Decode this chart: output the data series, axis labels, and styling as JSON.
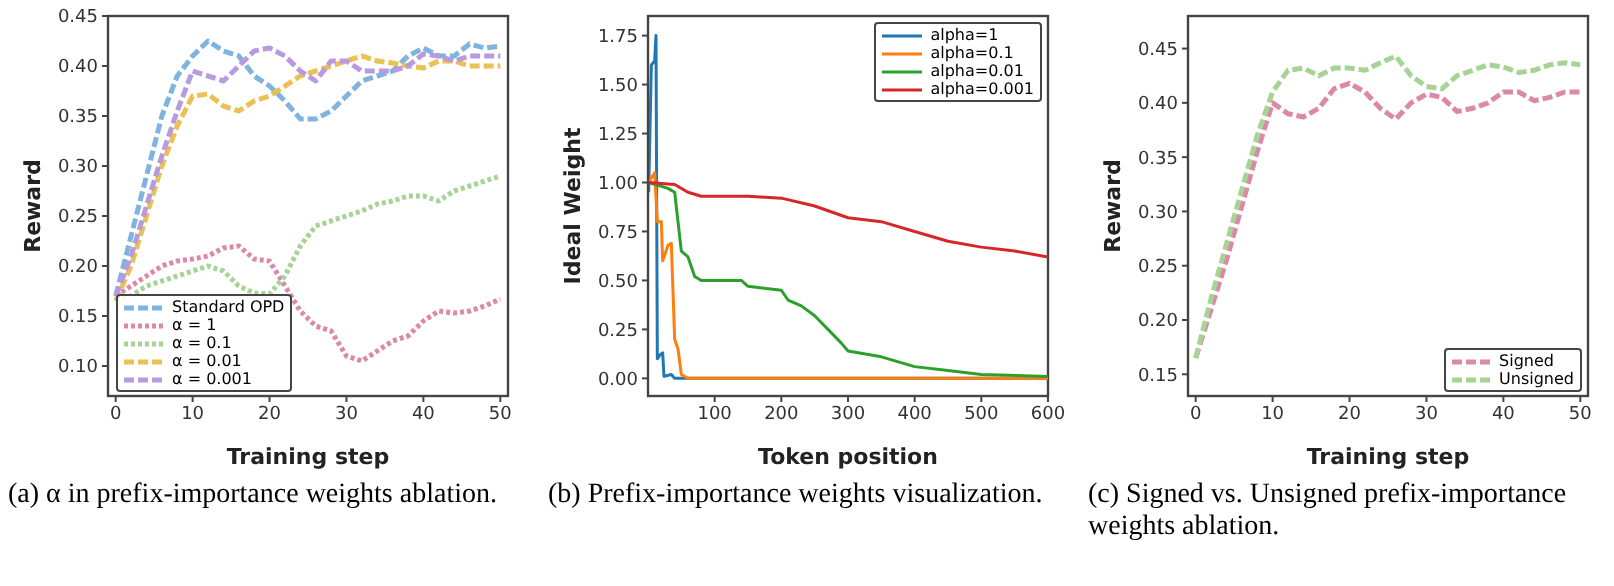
{
  "chart_data": [
    {
      "type": "line",
      "xlabel": "Training step",
      "ylabel": "Reward",
      "xlim": [
        -1,
        51
      ],
      "xticks": [
        0,
        10,
        20,
        30,
        40,
        50
      ],
      "ylim": [
        0.07,
        0.45
      ],
      "yticks": [
        {
          "value": 0.1,
          "label": "0.10"
        },
        {
          "value": 0.15,
          "label": "0.15"
        },
        {
          "value": 0.2,
          "label": "0.20"
        },
        {
          "value": 0.25,
          "label": "0.25"
        },
        {
          "value": 0.3,
          "label": "0.30"
        },
        {
          "value": 0.35,
          "label": "0.35"
        },
        {
          "value": 0.4,
          "label": "0.40"
        },
        {
          "value": 0.45,
          "label": "0.45"
        }
      ],
      "grid": false,
      "legend": "bottom left",
      "marker": "none",
      "annotations": [
        "(a) α in prefix-importance weights ablation."
      ],
      "x": [
        0,
        2,
        4,
        6,
        8,
        10,
        12,
        14,
        16,
        18,
        20,
        22,
        24,
        26,
        28,
        30,
        32,
        34,
        36,
        38,
        40,
        42,
        44,
        46,
        48,
        50
      ],
      "series": [
        {
          "name": "Standard OPD",
          "color": "#7fb3e0",
          "line_style": "dashed",
          "values": [
            0.17,
            0.23,
            0.29,
            0.35,
            0.39,
            0.41,
            0.425,
            0.415,
            0.41,
            0.39,
            0.38,
            0.365,
            0.347,
            0.347,
            0.355,
            0.37,
            0.385,
            0.39,
            0.395,
            0.41,
            0.418,
            0.41,
            0.41,
            0.422,
            0.418,
            0.42
          ]
        },
        {
          "name": "α = 1",
          "color": "#dc89a8",
          "line_style": "dotted",
          "values": [
            0.17,
            0.18,
            0.19,
            0.2,
            0.205,
            0.207,
            0.21,
            0.218,
            0.22,
            0.207,
            0.205,
            0.18,
            0.155,
            0.14,
            0.135,
            0.11,
            0.105,
            0.115,
            0.125,
            0.13,
            0.145,
            0.155,
            0.153,
            0.155,
            0.16,
            0.167
          ]
        },
        {
          "name": "α = 0.1",
          "color": "#a6d494",
          "line_style": "dotted",
          "values": [
            0.165,
            0.17,
            0.18,
            0.185,
            0.19,
            0.195,
            0.2,
            0.195,
            0.18,
            0.173,
            0.172,
            0.19,
            0.22,
            0.24,
            0.245,
            0.25,
            0.255,
            0.262,
            0.265,
            0.27,
            0.27,
            0.265,
            0.275,
            0.28,
            0.285,
            0.29
          ]
        },
        {
          "name": "α = 0.01",
          "color": "#ecc052",
          "line_style": "dashed",
          "values": [
            0.165,
            0.2,
            0.25,
            0.3,
            0.34,
            0.37,
            0.372,
            0.36,
            0.355,
            0.365,
            0.37,
            0.38,
            0.39,
            0.395,
            0.4,
            0.405,
            0.41,
            0.405,
            0.403,
            0.4,
            0.398,
            0.405,
            0.405,
            0.4,
            0.4,
            0.4
          ]
        },
        {
          "name": "α = 0.001",
          "color": "#b79ae0",
          "line_style": "dashed",
          "values": [
            0.17,
            0.21,
            0.26,
            0.31,
            0.355,
            0.395,
            0.39,
            0.385,
            0.4,
            0.415,
            0.418,
            0.41,
            0.395,
            0.385,
            0.405,
            0.405,
            0.395,
            0.395,
            0.395,
            0.4,
            0.412,
            0.41,
            0.405,
            0.41,
            0.41,
            0.41
          ]
        }
      ]
    },
    {
      "type": "line",
      "xlabel": "Token position",
      "ylabel": "Ideal Weight",
      "xlim": [
        0,
        600
      ],
      "xticks": [
        100,
        200,
        300,
        400,
        500,
        600
      ],
      "ylim": [
        -0.09,
        1.85
      ],
      "yticks": [
        {
          "value": 0,
          "label": "0.00"
        },
        {
          "value": 0.25,
          "label": "0.25"
        },
        {
          "value": 0.5,
          "label": "0.50"
        },
        {
          "value": 0.75,
          "label": "0.75"
        },
        {
          "value": 1,
          "label": "1.00"
        },
        {
          "value": 1.25,
          "label": "1.25"
        },
        {
          "value": 1.5,
          "label": "1.50"
        },
        {
          "value": 1.75,
          "label": "1.75"
        }
      ],
      "grid": false,
      "legend": "top right",
      "marker": "none",
      "annotations": [
        "(b) Prefix-importance weights visualization."
      ],
      "series": [
        {
          "name": "alpha=1",
          "color": "#1f77b4",
          "line_style": "solid",
          "x": [
            1,
            5,
            10,
            12,
            14,
            18,
            22,
            24,
            35,
            40,
            600
          ],
          "values": [
            0.95,
            1.6,
            1.62,
            1.75,
            0.1,
            0.12,
            0.13,
            0.01,
            0.02,
            0,
            0
          ]
        },
        {
          "name": "alpha=0.1",
          "color": "#ff7f0e",
          "line_style": "solid",
          "x": [
            1,
            10,
            14,
            20,
            22,
            30,
            35,
            40,
            45,
            50,
            60,
            600
          ],
          "values": [
            1.0,
            1.05,
            0.8,
            0.8,
            0.6,
            0.68,
            0.69,
            0.2,
            0.15,
            0.02,
            0,
            0
          ]
        },
        {
          "name": "alpha=0.01",
          "color": "#2ca02c",
          "line_style": "solid",
          "x": [
            1,
            30,
            40,
            45,
            50,
            60,
            70,
            80,
            140,
            150,
            200,
            210,
            230,
            250,
            270,
            290,
            300,
            350,
            400,
            450,
            500,
            600
          ],
          "values": [
            1.0,
            0.97,
            0.95,
            0.8,
            0.65,
            0.62,
            0.52,
            0.5,
            0.5,
            0.47,
            0.45,
            0.4,
            0.37,
            0.32,
            0.25,
            0.18,
            0.14,
            0.11,
            0.06,
            0.04,
            0.02,
            0.01
          ]
        },
        {
          "name": "alpha=0.001",
          "color": "#d62728",
          "line_style": "solid",
          "x": [
            1,
            40,
            60,
            80,
            150,
            200,
            250,
            300,
            350,
            400,
            450,
            500,
            550,
            600
          ],
          "values": [
            1.0,
            0.99,
            0.95,
            0.93,
            0.93,
            0.92,
            0.88,
            0.82,
            0.8,
            0.75,
            0.7,
            0.67,
            0.65,
            0.62
          ]
        }
      ]
    },
    {
      "type": "line",
      "xlabel": "Training step",
      "ylabel": "Reward",
      "xlim": [
        -1,
        51
      ],
      "xticks": [
        0,
        10,
        20,
        30,
        40,
        50
      ],
      "ylim": [
        0.13,
        0.48
      ],
      "yticks": [
        {
          "value": 0.15,
          "label": "0.15"
        },
        {
          "value": 0.2,
          "label": "0.20"
        },
        {
          "value": 0.25,
          "label": "0.25"
        },
        {
          "value": 0.3,
          "label": "0.30"
        },
        {
          "value": 0.35,
          "label": "0.35"
        },
        {
          "value": 0.4,
          "label": "0.40"
        },
        {
          "value": 0.45,
          "label": "0.45"
        }
      ],
      "grid": false,
      "legend": "bottom right",
      "marker": "none",
      "annotations": [
        "(c) Signed vs. Unsigned prefix-importance weights ablation."
      ],
      "x": [
        0,
        2,
        4,
        6,
        8,
        10,
        12,
        14,
        16,
        18,
        20,
        22,
        24,
        26,
        28,
        30,
        32,
        34,
        36,
        38,
        40,
        42,
        44,
        46,
        48,
        50
      ],
      "series": [
        {
          "name": "Signed",
          "color": "#dc89a8",
          "line_style": "dashed",
          "values": [
            0.165,
            0.21,
            0.255,
            0.305,
            0.355,
            0.4,
            0.39,
            0.387,
            0.395,
            0.413,
            0.418,
            0.41,
            0.395,
            0.385,
            0.4,
            0.408,
            0.405,
            0.392,
            0.395,
            0.4,
            0.41,
            0.41,
            0.402,
            0.405,
            0.41,
            0.41
          ]
        },
        {
          "name": "Unsigned",
          "color": "#a6d494",
          "line_style": "dashed",
          "values": [
            0.165,
            0.22,
            0.27,
            0.32,
            0.37,
            0.41,
            0.43,
            0.432,
            0.425,
            0.432,
            0.432,
            0.43,
            0.437,
            0.443,
            0.425,
            0.415,
            0.413,
            0.425,
            0.43,
            0.435,
            0.433,
            0.428,
            0.43,
            0.435,
            0.437,
            0.435
          ]
        }
      ]
    }
  ]
}
